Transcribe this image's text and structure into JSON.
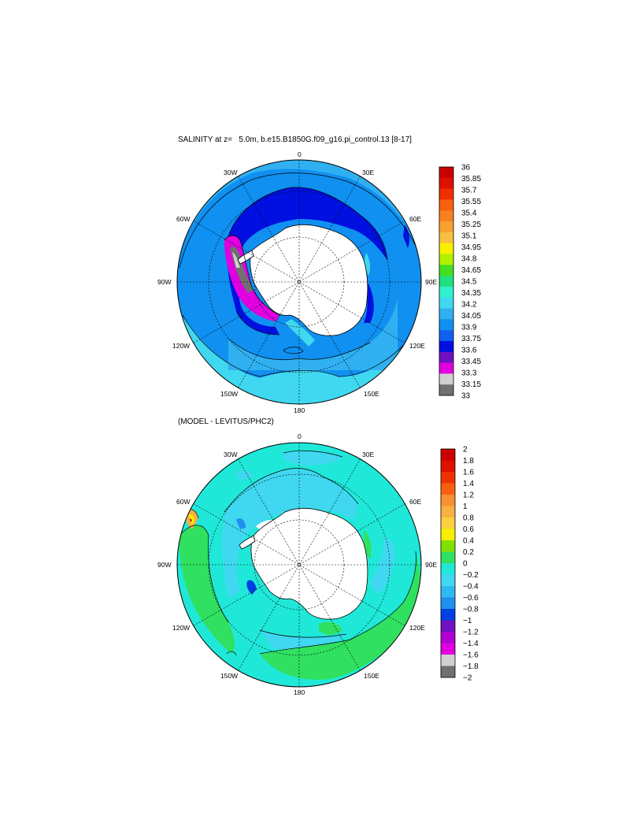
{
  "panels": [
    {
      "title": "SALINITY at z=   5.0m, b.e15.B1850G.f09_g16.pi_control.13 [8-17]",
      "meridian_labels": {
        "lon0": "0",
        "lon30e": "30E",
        "lon60e": "60E",
        "lon90e": "90E",
        "lon120e": "120E",
        "lon150e": "150E",
        "lon180": "180",
        "lon150w": "150W",
        "lon120w": "120W",
        "lon90w": "90W",
        "lon60w": "60W",
        "lon30w": "30W"
      },
      "colorbar": {
        "labels": [
          "36",
          "35.85",
          "35.7",
          "35.55",
          "35.4",
          "35.25",
          "35.1",
          "34.95",
          "34.8",
          "34.65",
          "34.5",
          "34.35",
          "34.2",
          "34.05",
          "33.9",
          "33.75",
          "33.6",
          "33.45",
          "33.3",
          "33.15",
          "33"
        ],
        "colors": [
          "#c80000",
          "#e01000",
          "#f03000",
          "#f86010",
          "#f88020",
          "#f8a030",
          "#f8c040",
          "#f8f000",
          "#b0f000",
          "#40e020",
          "#20e080",
          "#30f0d0",
          "#40d8f0",
          "#30b0f0",
          "#1090f0",
          "#1060f0",
          "#0010e0",
          "#7010c0",
          "#e000e0",
          "#d0d0d0",
          "#707070"
        ]
      },
      "fields": {
        "ocean_fill": "#1090f0",
        "band_fill": "#30b0f0",
        "outer_fill": "#40d8f0",
        "shelf_fill": "#0010e0",
        "weddell_fill": "#e000e0",
        "ice_fill": "#707070"
      }
    },
    {
      "title": "(MODEL - LEVITUS/PHC2)",
      "meridian_labels": {
        "lon0": "0",
        "lon30e": "30E",
        "lon60e": "60E",
        "lon90e": "90E",
        "lon120e": "120E",
        "lon150e": "150E",
        "lon180": "180",
        "lon150w": "150W",
        "lon120w": "120W",
        "lon90w": "90W",
        "lon60w": "60W",
        "lon30w": "30W"
      },
      "colorbar": {
        "labels": [
          "2",
          "1.8",
          "1.6",
          "1.4",
          "1.2",
          "1",
          "0.8",
          "0.6",
          "0.4",
          "0.2",
          "0",
          "−0.2",
          "−0.4",
          "−0.6",
          "−0.8",
          "−1",
          "−1.2",
          "−1.4",
          "−1.6",
          "−1.8",
          "−2"
        ],
        "colors": [
          "#c80000",
          "#e01000",
          "#f03000",
          "#f86010",
          "#f89030",
          "#f8b040",
          "#f8d040",
          "#f8f000",
          "#80e000",
          "#30e060",
          "#20e8d8",
          "#40d8f0",
          "#30b8f0",
          "#2090f0",
          "#0040e0",
          "#7010c0",
          "#b000d0",
          "#e000e0",
          "#d0d0d0",
          "#707070"
        ]
      },
      "fields": {
        "ocean_fill": "#20e8d8",
        "neg_fill": "#40d8f0",
        "pos_fill": "#30e060",
        "strong_fill": "#0040e0",
        "hot_fill": "#f8b040"
      }
    }
  ]
}
